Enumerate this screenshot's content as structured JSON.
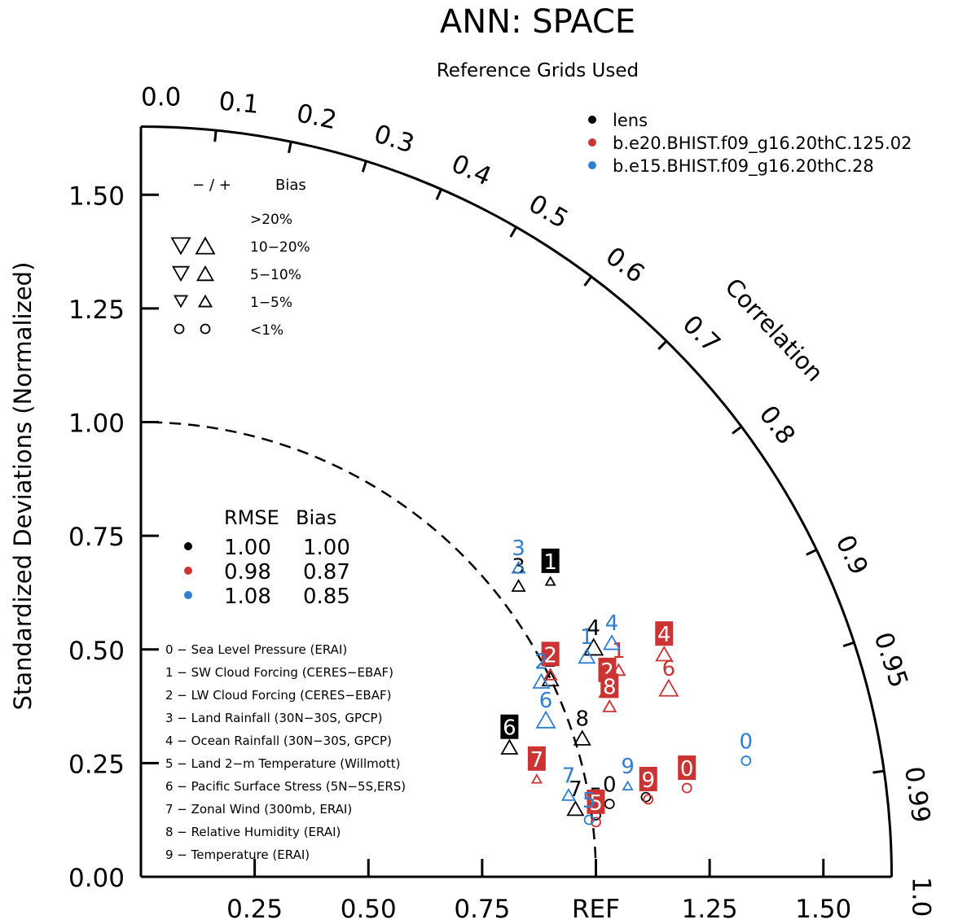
{
  "chart_data": {
    "type": "taylor",
    "title": "ANN: SPACE",
    "subtitle": "Reference Grids Used",
    "ylabel": "Standardized Deviations (Normalized)",
    "arc_label": "Correlation",
    "ref_label": "REF",
    "std_max": 1.65,
    "y_ticks": [
      "0.00",
      "0.25",
      "0.50",
      "0.75",
      "1.00",
      "1.25",
      "1.50"
    ],
    "x_ticks": [
      "0.25",
      "0.50",
      "0.75",
      "REF",
      "1.25",
      "1.50"
    ],
    "corr_ticks": [
      {
        "r": 0.0,
        "label": "0.0"
      },
      {
        "r": 0.1,
        "label": "0.1"
      },
      {
        "r": 0.2,
        "label": "0.2"
      },
      {
        "r": 0.3,
        "label": "0.3"
      },
      {
        "r": 0.4,
        "label": "0.4"
      },
      {
        "r": 0.5,
        "label": "0.5"
      },
      {
        "r": 0.6,
        "label": "0.6"
      },
      {
        "r": 0.7,
        "label": "0.7"
      },
      {
        "r": 0.8,
        "label": "0.8"
      },
      {
        "r": 0.9,
        "label": "0.9"
      },
      {
        "r": 0.95,
        "label": "0.95"
      },
      {
        "r": 0.99,
        "label": "0.99"
      },
      {
        "r": 1.0,
        "label": "1.0"
      }
    ],
    "bias_legend": {
      "header_signs": "− / +",
      "header_bias": "Bias",
      "rows": [
        {
          "label": ">20%",
          "size": 5
        },
        {
          "label": "10−20%",
          "size": 4
        },
        {
          "label": "5−10%",
          "size": 3
        },
        {
          "label": "1−5%",
          "size": 2
        },
        {
          "label": "<1%",
          "size": 1
        }
      ]
    },
    "series": [
      {
        "name": "lens",
        "color": "#000000",
        "rmse": "1.00",
        "bias": "1.00"
      },
      {
        "name": "b.e20.BHIST.f09_g16.20thC.125.02",
        "color": "#cc3333",
        "rmse": "0.98",
        "bias": "0.87"
      },
      {
        "name": "b.e15.BHIST.f09_g16.20thC.28",
        "color": "#2f7fd1",
        "rmse": "1.08",
        "bias": "0.85"
      }
    ],
    "stats_header": {
      "rmse": "RMSE",
      "bias": "Bias"
    },
    "variables": [
      "0 − Sea Level Pressure (ERAI)",
      "1 − SW Cloud Forcing (CERES−EBAF)",
      "2 − LW Cloud Forcing (CERES−EBAF)",
      "3 − Land Rainfall (30N−30S, GPCP)",
      "4 − Ocean Rainfall (30N−30S, GPCP)",
      "5 − Land 2−m Temperature (Willmott)",
      "6 − Pacific Surface Stress (5N−5S,ERS)",
      "7 − Zonal Wind (300mb, ERAI)",
      "8 − Relative Humidity (ERAI)",
      "9 − Temperature (ERAI)"
    ],
    "points": [
      {
        "series": 0,
        "label": "1",
        "x": 0.9,
        "y": 0.695,
        "boxed": true,
        "marker": "up",
        "size": 1
      },
      {
        "series": 0,
        "label": "3",
        "x": 0.83,
        "y": 0.685,
        "boxed": false,
        "marker": "up",
        "size": 2
      },
      {
        "series": 0,
        "label": "4",
        "x": 0.995,
        "y": 0.55,
        "boxed": false,
        "marker": "up",
        "size": 4
      },
      {
        "series": 0,
        "label": "2",
        "x": 0.9,
        "y": 0.48,
        "boxed": false,
        "marker": "up",
        "size": 3
      },
      {
        "series": 0,
        "label": "8",
        "x": 0.97,
        "y": 0.35,
        "boxed": false,
        "marker": "up",
        "size": 3
      },
      {
        "series": 0,
        "label": "6",
        "x": 0.81,
        "y": 0.33,
        "boxed": true,
        "marker": "up",
        "size": 3
      },
      {
        "series": 0,
        "label": "7",
        "x": 0.955,
        "y": 0.195,
        "boxed": false,
        "marker": "up",
        "size": 3
      },
      {
        "series": 0,
        "label": "0",
        "x": 1.03,
        "y": 0.205,
        "boxed": false,
        "marker": "circle",
        "size": 1
      },
      {
        "series": 0,
        "label": "5",
        "x": 1.0,
        "y": 0.18,
        "boxed": false,
        "marker": "circle",
        "size": 1
      },
      {
        "series": 0,
        "label": "9",
        "x": 1.11,
        "y": 0.22,
        "boxed": false,
        "marker": "circle",
        "size": 1
      },
      {
        "series": 1,
        "label": "4",
        "x": 1.15,
        "y": 0.535,
        "boxed": true,
        "marker": "up",
        "size": 3
      },
      {
        "series": 1,
        "label": "1",
        "x": 1.05,
        "y": 0.5,
        "boxed": false,
        "marker": "up",
        "size": 2
      },
      {
        "series": 1,
        "label": "6",
        "x": 1.16,
        "y": 0.46,
        "boxed": false,
        "marker": "up",
        "size": 4
      },
      {
        "series": 1,
        "label": "2",
        "x": 1.025,
        "y": 0.455,
        "boxed": true,
        "marker": "up",
        "size": 3
      },
      {
        "series": 1,
        "label": "2",
        "x": 0.9,
        "y": 0.49,
        "boxed": true,
        "marker": "up",
        "size": 2
      },
      {
        "series": 1,
        "label": "8",
        "x": 1.03,
        "y": 0.42,
        "boxed": true,
        "marker": "up",
        "size": 2
      },
      {
        "series": 1,
        "label": "7",
        "x": 0.87,
        "y": 0.26,
        "boxed": true,
        "marker": "up",
        "size": 1
      },
      {
        "series": 1,
        "label": "9",
        "x": 1.115,
        "y": 0.215,
        "boxed": true,
        "marker": "circle",
        "size": 1
      },
      {
        "series": 1,
        "label": "0",
        "x": 1.2,
        "y": 0.24,
        "boxed": true,
        "marker": "circle",
        "size": 1
      },
      {
        "series": 1,
        "label": "5",
        "x": 1.0,
        "y": 0.165,
        "boxed": true,
        "marker": "circle",
        "size": 1
      },
      {
        "series": 2,
        "label": "3",
        "x": 0.83,
        "y": 0.725,
        "boxed": false,
        "marker": "up",
        "size": 2
      },
      {
        "series": 2,
        "label": "4",
        "x": 1.035,
        "y": 0.56,
        "boxed": false,
        "marker": "up",
        "size": 3
      },
      {
        "series": 2,
        "label": "1",
        "x": 0.98,
        "y": 0.53,
        "boxed": false,
        "marker": "up",
        "size": 3
      },
      {
        "series": 2,
        "label": "2",
        "x": 0.88,
        "y": 0.475,
        "boxed": false,
        "marker": "up",
        "size": 3
      },
      {
        "series": 2,
        "label": "6",
        "x": 0.89,
        "y": 0.39,
        "boxed": false,
        "marker": "up",
        "size": 4
      },
      {
        "series": 2,
        "label": "7",
        "x": 0.94,
        "y": 0.225,
        "boxed": false,
        "marker": "up",
        "size": 2
      },
      {
        "series": 2,
        "label": "9",
        "x": 1.07,
        "y": 0.245,
        "boxed": false,
        "marker": "up",
        "size": 1
      },
      {
        "series": 2,
        "label": "0",
        "x": 1.33,
        "y": 0.3,
        "boxed": false,
        "marker": "circle",
        "size": 1
      },
      {
        "series": 2,
        "label": "5",
        "x": 0.985,
        "y": 0.17,
        "boxed": false,
        "marker": "circle",
        "size": 1
      }
    ]
  }
}
